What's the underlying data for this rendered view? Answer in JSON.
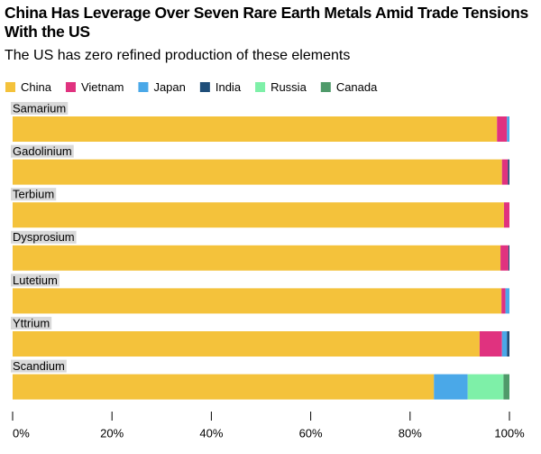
{
  "chart_data": {
    "type": "bar",
    "orientation": "horizontal",
    "stacked": true,
    "title": "China Has Leverage Over Seven Rare Earth Metals Amid Trade Tensions With the US",
    "subtitle": "The US has zero refined production of these elements",
    "categories": [
      "Samarium",
      "Gadolinium",
      "Terbium",
      "Dysprosium",
      "Lutetium",
      "Yttrium",
      "Scandium"
    ],
    "series": [
      {
        "name": "China",
        "color": "#f4c23b",
        "values": [
          97.5,
          98.5,
          98.9,
          98.2,
          98.4,
          94.0,
          84.8
        ]
      },
      {
        "name": "Vietnam",
        "color": "#e0327f",
        "values": [
          2.0,
          1.2,
          1.1,
          1.6,
          0.8,
          4.5,
          0
        ]
      },
      {
        "name": "Japan",
        "color": "#4aa8e8",
        "values": [
          0.5,
          0,
          0,
          0,
          0.8,
          1.0,
          6.8
        ]
      },
      {
        "name": "India",
        "color": "#1f4e79",
        "values": [
          0,
          0.3,
          0,
          0.2,
          0,
          0.5,
          0
        ]
      },
      {
        "name": "Russia",
        "color": "#7ef0a8",
        "values": [
          0,
          0,
          0,
          0,
          0,
          0,
          7.2
        ]
      },
      {
        "name": "Canada",
        "color": "#4f9a6a",
        "values": [
          0,
          0,
          0,
          0,
          0,
          0,
          1.2
        ]
      }
    ],
    "xlim": [
      0,
      100
    ],
    "xticks": [
      {
        "value": 0,
        "label": "0%"
      },
      {
        "value": 20,
        "label": "20%"
      },
      {
        "value": 40,
        "label": "40%"
      },
      {
        "value": 60,
        "label": "60%"
      },
      {
        "value": 80,
        "label": "80%"
      },
      {
        "value": 100,
        "label": "100%"
      }
    ]
  }
}
